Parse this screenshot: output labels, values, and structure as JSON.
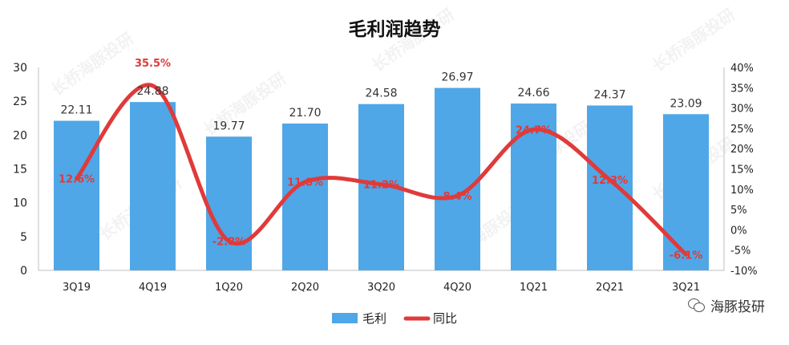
{
  "chart_data": {
    "type": "bar",
    "title": "毛利润趋势",
    "categories": [
      "3Q19",
      "4Q19",
      "1Q20",
      "2Q20",
      "3Q20",
      "4Q20",
      "1Q21",
      "2Q21",
      "3Q21"
    ],
    "series": [
      {
        "name": "毛利",
        "type": "bar",
        "axis": "left",
        "color": "#4fa7e7",
        "values": [
          22.11,
          24.88,
          19.77,
          21.7,
          24.58,
          26.97,
          24.66,
          24.37,
          23.09
        ],
        "labels": [
          "22.11",
          "24.88",
          "19.77",
          "21.70",
          "24.58",
          "26.97",
          "24.66",
          "24.37",
          "23.09"
        ]
      },
      {
        "name": "同比",
        "type": "line",
        "axis": "right",
        "color": "#e03a3a",
        "values": [
          12.6,
          35.5,
          -2.8,
          11.8,
          11.2,
          8.4,
          24.7,
          12.3,
          -6.1
        ],
        "labels": [
          "12.6%",
          "35.5%",
          "-2.8%",
          "11.8%",
          "11.2%",
          "8.4%",
          "24.7%",
          "12.3%",
          "-6.1%"
        ]
      }
    ],
    "y_left": {
      "min": 0,
      "max": 30,
      "ticks": [
        "0",
        "5",
        "10",
        "15",
        "20",
        "25",
        "30"
      ]
    },
    "y_right": {
      "min": -10,
      "max": 40,
      "ticks": [
        "-10%",
        "-5%",
        "0%",
        "5%",
        "10%",
        "15%",
        "20%",
        "25%",
        "30%",
        "35%",
        "40%"
      ]
    },
    "grid": false,
    "legend": "bottom-center",
    "smooth_line": true
  },
  "watermark": {
    "text": "长桥海豚投研",
    "brand": "海豚投研",
    "icon": "wechat-icon"
  }
}
